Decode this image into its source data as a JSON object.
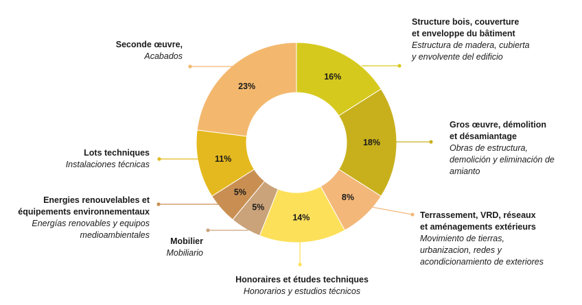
{
  "chart_data": {
    "type": "pie",
    "style": "donut",
    "unit": "%",
    "slices": [
      {
        "value": 16,
        "label": "16%",
        "color": "#d6c91e",
        "title": "Structure bois, couverture et enveloppe du bâtiment",
        "subtitle": "Estructura de madera, cubierta y envolvente del edificio"
      },
      {
        "value": 18,
        "label": "18%",
        "color": "#c8b01d",
        "title": "Gros œuvre, démolition et désamiantage",
        "subtitle": "Obras de estructura, demolición y eliminación de amianto"
      },
      {
        "value": 8,
        "label": "8%",
        "color": "#f3b779",
        "title": "Terrassement, VRD, réseaux et aménagements extérieurs",
        "subtitle": "Movimiento de tierras, urbanizacion, redes y acondicionamiento de exteriores"
      },
      {
        "value": 14,
        "label": "14%",
        "color": "#fde05a",
        "title": "Honoraires et études techniques",
        "subtitle": "Honorarios y estudios técnicos"
      },
      {
        "value": 5,
        "label": "5%",
        "color": "#caa37a",
        "title": "Mobilier",
        "subtitle": "Mobiliario"
      },
      {
        "value": 5,
        "label": "5%",
        "color": "#c98f52",
        "title": "Energies renouvelables et équipements environnementaux",
        "subtitle": "Energías renovables y equipos medioambientales"
      },
      {
        "value": 11,
        "label": "11%",
        "color": "#e4b91f",
        "title": "Lots techniques",
        "subtitle": "Instalaciones técnicas"
      },
      {
        "value": 23,
        "label": "23%",
        "color": "#f3b86e",
        "title": "Seconde œuvre,",
        "subtitle": "Acabados"
      }
    ]
  },
  "labels": {
    "structure": {
      "title1": "Structure bois, couverture",
      "title2": "et enveloppe du bâtiment",
      "sub1": "Estructura de madera, cubierta",
      "sub2": "y envolvente del edificio"
    },
    "gros": {
      "title1": "Gros œuvre, démolition",
      "title2": "et désamiantage",
      "sub1": "Obras de estructura,",
      "sub2": "demolición y eliminación de",
      "sub3": "amianto"
    },
    "terrassement": {
      "title1": "Terrassement, VRD, réseaux",
      "title2": "et aménagements extérieurs",
      "sub1": "Movimiento de tierras,",
      "sub2": "urbanizacion, redes y",
      "sub3": "acondicionamiento de exteriores"
    },
    "honoraires": {
      "title1": "Honoraires et études techniques",
      "sub1": "Honorarios y estudios técnicos"
    },
    "mobilier": {
      "title1": "Mobilier",
      "sub1": "Mobiliario"
    },
    "energies": {
      "title1": "Energies renouvelables et",
      "title2": "équipements environnementaux",
      "sub1": "Energías renovables y equipos",
      "sub2": "medioambientales"
    },
    "lots": {
      "title1": "Lots techniques",
      "sub1": "Instalaciones técnicas"
    },
    "seconde": {
      "title1": "Seconde œuvre,",
      "sub1": "Acabados"
    }
  }
}
